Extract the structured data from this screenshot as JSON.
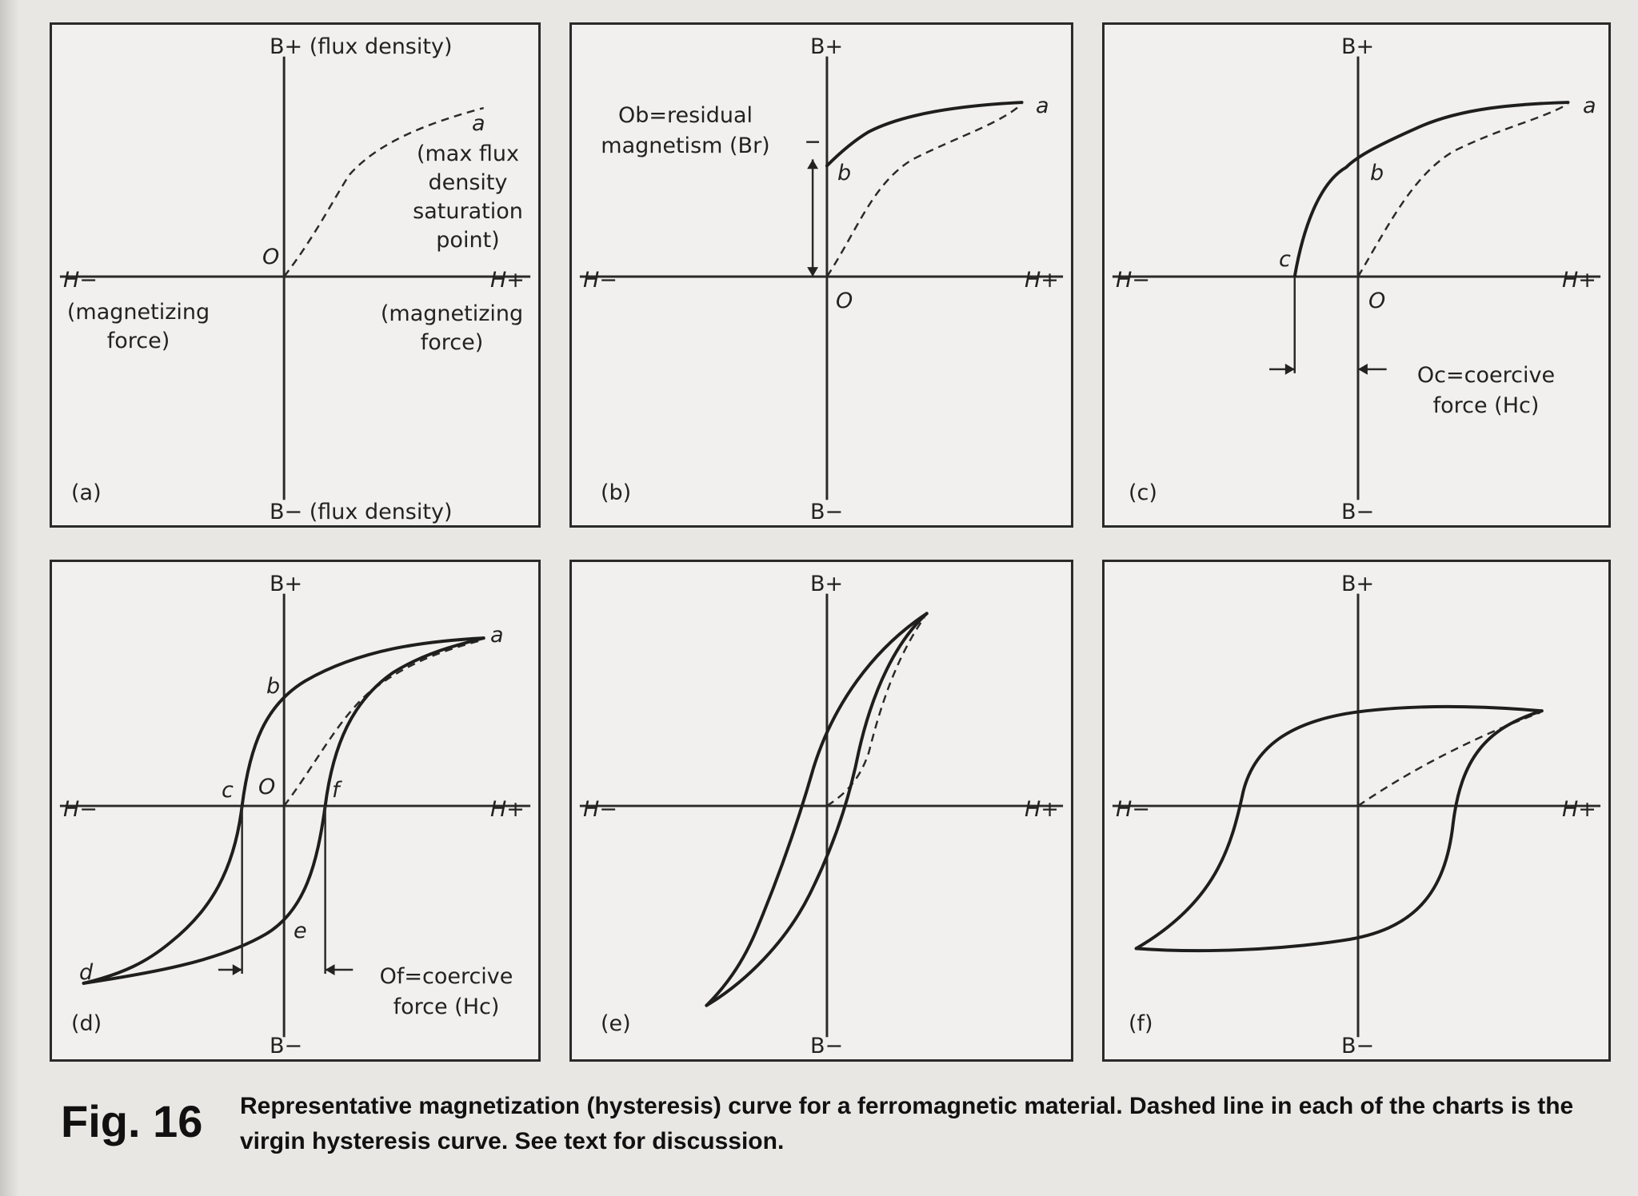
{
  "figure": {
    "label": "Fig. 16",
    "caption": "Representative magnetization (hysteresis) curve for a ferromagnetic material. Dashed line in each of the charts is the virgin hysteresis curve. See text for discussion."
  },
  "panels": {
    "a": {
      "tag": "(a)",
      "top_axis": "B+ (flux density)",
      "bottom_axis": "B− (flux density)",
      "left_axis": "H−",
      "left_axis_sub": "(magnetizing force)",
      "right_axis": "H+",
      "right_axis_sub": "(magnetizing force)",
      "origin": "O",
      "point_a": "a",
      "point_a_note": "(max flux density saturation point)"
    },
    "b": {
      "tag": "(b)",
      "top_axis": "B+",
      "bottom_axis": "B−",
      "left_axis": "H−",
      "right_axis": "H+",
      "origin": "O",
      "point_a": "a",
      "point_b": "b",
      "note": "Ob=residual magnetism (Br)"
    },
    "c": {
      "tag": "(c)",
      "top_axis": "B+",
      "bottom_axis": "B−",
      "left_axis": "H−",
      "right_axis": "H+",
      "origin": "O",
      "point_a": "a",
      "point_b": "b",
      "point_c": "c",
      "note": "Oc=coercive force (Hc)"
    },
    "d": {
      "tag": "(d)",
      "top_axis": "B+",
      "bottom_axis": "B−",
      "left_axis": "H−",
      "right_axis": "H+",
      "origin": "O",
      "point_a": "a",
      "point_b": "b",
      "point_c": "c",
      "point_d": "d",
      "point_e": "e",
      "point_f": "f",
      "note": "Of=coercive force (Hc)"
    },
    "e": {
      "tag": "(e)",
      "top_axis": "B+",
      "bottom_axis": "B−",
      "left_axis": "H−",
      "right_axis": "H+"
    },
    "f": {
      "tag": "(f)",
      "top_axis": "B+",
      "bottom_axis": "B−",
      "left_axis": "H−",
      "right_axis": "H+"
    }
  }
}
